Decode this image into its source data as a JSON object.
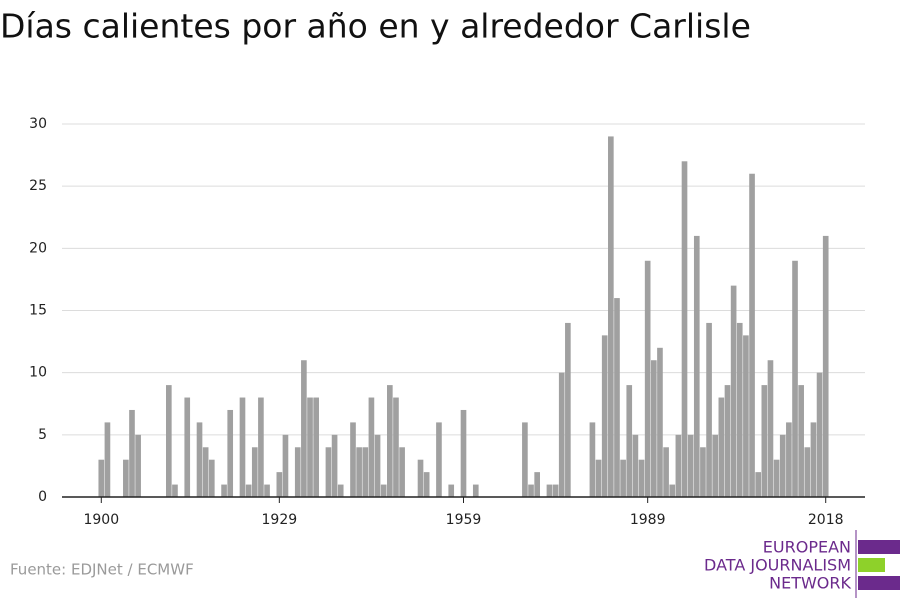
{
  "chart_data": {
    "type": "bar",
    "title": "Días calientes por año en y alrededor Carlisle",
    "x": [
      1900,
      1901,
      1902,
      1903,
      1904,
      1905,
      1906,
      1907,
      1908,
      1909,
      1910,
      1911,
      1912,
      1913,
      1914,
      1915,
      1916,
      1917,
      1918,
      1919,
      1920,
      1921,
      1922,
      1923,
      1924,
      1925,
      1926,
      1927,
      1928,
      1929,
      1930,
      1931,
      1932,
      1933,
      1934,
      1935,
      1936,
      1937,
      1938,
      1939,
      1940,
      1941,
      1942,
      1943,
      1944,
      1945,
      1946,
      1947,
      1948,
      1949,
      1950,
      1951,
      1952,
      1953,
      1954,
      1955,
      1956,
      1957,
      1958,
      1959,
      1960,
      1961,
      1962,
      1963,
      1964,
      1965,
      1966,
      1967,
      1968,
      1969,
      1970,
      1971,
      1972,
      1973,
      1974,
      1975,
      1976,
      1977,
      1978,
      1979,
      1980,
      1981,
      1982,
      1983,
      1984,
      1985,
      1986,
      1987,
      1988,
      1989,
      1990,
      1991,
      1992,
      1993,
      1994,
      1995,
      1996,
      1997,
      1998,
      1999,
      2000,
      2001,
      2002,
      2003,
      2004,
      2005,
      2006,
      2007,
      2008,
      2009,
      2010,
      2011,
      2012,
      2013,
      2014,
      2015,
      2016,
      2017,
      2018
    ],
    "values": [
      3,
      6,
      0,
      0,
      3,
      7,
      5,
      0,
      0,
      0,
      0,
      9,
      1,
      0,
      8,
      0,
      6,
      4,
      3,
      0,
      1,
      7,
      0,
      8,
      1,
      4,
      8,
      1,
      0,
      2,
      5,
      0,
      4,
      11,
      8,
      8,
      0,
      4,
      5,
      1,
      0,
      6,
      4,
      4,
      8,
      5,
      1,
      9,
      8,
      4,
      0,
      0,
      3,
      2,
      0,
      6,
      0,
      1,
      0,
      7,
      0,
      1,
      0,
      0,
      0,
      0,
      0,
      0,
      0,
      6,
      1,
      2,
      0,
      1,
      1,
      10,
      14,
      0,
      0,
      0,
      6,
      3,
      13,
      29,
      16,
      3,
      9,
      5,
      3,
      19,
      11,
      12,
      4,
      1,
      5,
      27,
      5,
      21,
      4,
      14,
      5,
      8,
      9,
      17,
      14,
      13,
      26,
      2,
      9,
      11,
      3,
      5,
      6,
      19,
      9,
      4,
      6,
      10,
      21
    ],
    "color": "#a0a0a0",
    "xlim": [
      1893.6,
      2024.4
    ],
    "xticks": [
      1900,
      1929,
      1959,
      1989,
      2018
    ],
    "ylim": [
      0,
      30
    ],
    "yticks": [
      0,
      5,
      10,
      15,
      20,
      25,
      30
    ],
    "grid": true
  },
  "footer": {
    "source": "Fuente: EDJNet / ECMWF",
    "logo": [
      "EUROPEAN",
      "DATA JOURNALISM",
      "NETWORK"
    ]
  }
}
